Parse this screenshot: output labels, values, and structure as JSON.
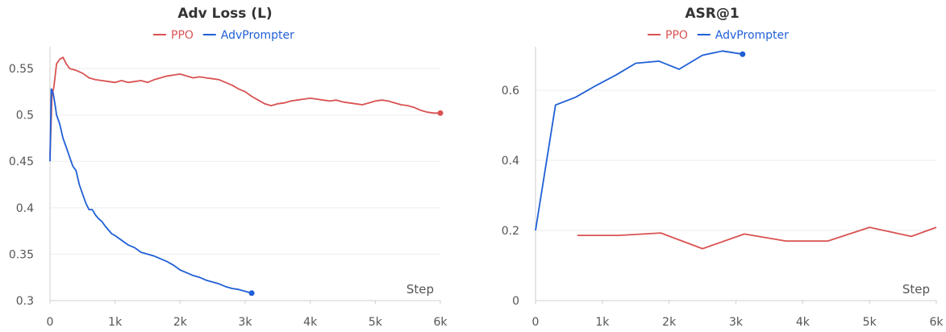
{
  "chart_data": [
    {
      "type": "line",
      "title": "Adv Loss (L)",
      "xlabel": "Step",
      "ylabel": "",
      "xlim": [
        0,
        6000
      ],
      "ylim": [
        0.3,
        0.57
      ],
      "xticks": [
        0,
        1000,
        2000,
        3000,
        4000,
        5000,
        6000
      ],
      "xtick_labels": [
        "0",
        "1k",
        "2k",
        "3k",
        "4k",
        "5k",
        "6k"
      ],
      "yticks": [
        0.3,
        0.35,
        0.4,
        0.45,
        0.5,
        0.55
      ],
      "ytick_labels": [
        "0.3",
        "0.35",
        "0.4",
        "0.45",
        "0.5",
        "0.55"
      ],
      "grid": true,
      "legend_position": "top-center",
      "series": [
        {
          "name": "PPO",
          "color": "#d95252",
          "x": [
            0,
            30,
            60,
            100,
            150,
            200,
            250,
            300,
            400,
            500,
            600,
            700,
            800,
            900,
            1000,
            1100,
            1200,
            1300,
            1400,
            1500,
            1600,
            1700,
            1800,
            1900,
            2000,
            2100,
            2200,
            2300,
            2400,
            2500,
            2600,
            2700,
            2800,
            2900,
            3000,
            3100,
            3200,
            3300,
            3400,
            3500,
            3600,
            3700,
            3800,
            3900,
            4000,
            4100,
            4200,
            4300,
            4400,
            4500,
            4600,
            4700,
            4800,
            4900,
            5000,
            5100,
            5200,
            5300,
            5400,
            5500,
            5600,
            5700,
            5800,
            5900,
            6000
          ],
          "values": [
            0.455,
            0.52,
            0.53,
            0.555,
            0.56,
            0.562,
            0.555,
            0.55,
            0.548,
            0.545,
            0.54,
            0.538,
            0.537,
            0.536,
            0.535,
            0.537,
            0.535,
            0.536,
            0.537,
            0.535,
            0.538,
            0.54,
            0.542,
            0.543,
            0.544,
            0.542,
            0.54,
            0.541,
            0.54,
            0.539,
            0.538,
            0.535,
            0.532,
            0.528,
            0.525,
            0.52,
            0.516,
            0.512,
            0.51,
            0.512,
            0.513,
            0.515,
            0.516,
            0.517,
            0.518,
            0.517,
            0.516,
            0.515,
            0.516,
            0.514,
            0.513,
            0.512,
            0.511,
            0.513,
            0.515,
            0.516,
            0.515,
            0.513,
            0.511,
            0.51,
            0.508,
            0.505,
            0.503,
            0.502,
            0.502
          ]
        },
        {
          "name": "AdvPrompter",
          "color": "#1f5fd6",
          "x": [
            0,
            20,
            50,
            80,
            100,
            150,
            200,
            250,
            300,
            350,
            400,
            450,
            500,
            550,
            600,
            650,
            700,
            750,
            800,
            850,
            900,
            950,
            1000,
            1100,
            1200,
            1300,
            1400,
            1500,
            1600,
            1700,
            1800,
            1900,
            2000,
            2100,
            2200,
            2300,
            2400,
            2500,
            2600,
            2700,
            2800,
            2900,
            3000,
            3100
          ],
          "values": [
            0.45,
            0.528,
            0.523,
            0.51,
            0.5,
            0.49,
            0.475,
            0.465,
            0.455,
            0.445,
            0.44,
            0.425,
            0.415,
            0.405,
            0.398,
            0.398,
            0.392,
            0.388,
            0.385,
            0.38,
            0.376,
            0.372,
            0.37,
            0.365,
            0.36,
            0.357,
            0.352,
            0.35,
            0.348,
            0.345,
            0.342,
            0.338,
            0.333,
            0.33,
            0.327,
            0.325,
            0.322,
            0.32,
            0.318,
            0.315,
            0.313,
            0.312,
            0.31,
            0.308
          ]
        }
      ]
    },
    {
      "type": "line",
      "title": "ASR@1",
      "xlabel": "Step",
      "ylabel": "",
      "xlim": [
        0,
        6000
      ],
      "ylim": [
        0,
        0.715
      ],
      "xticks": [
        0,
        1000,
        2000,
        3000,
        4000,
        5000,
        6000
      ],
      "xtick_labels": [
        "0",
        "1k",
        "2k",
        "3k",
        "4k",
        "5k",
        "6k"
      ],
      "yticks": [
        0,
        0.2,
        0.4,
        0.6
      ],
      "ytick_labels": [
        "0",
        "0.2",
        "0.4",
        "0.6"
      ],
      "grid": true,
      "legend_position": "top-center",
      "series": [
        {
          "name": "PPO",
          "color": "#d95252",
          "x": [
            625,
            1250,
            1875,
            2500,
            3125,
            3750,
            4375,
            5000,
            5625,
            6000
          ],
          "values": [
            0.186,
            0.186,
            0.193,
            0.148,
            0.19,
            0.17,
            0.17,
            0.209,
            0.183,
            0.209
          ]
        },
        {
          "name": "AdvPrompter",
          "color": "#1f5fd6",
          "x": [
            0,
            300,
            600,
            900,
            1200,
            1500,
            1850,
            2150,
            2500,
            2800,
            3100
          ],
          "values": [
            0.2,
            0.558,
            0.58,
            0.613,
            0.643,
            0.677,
            0.683,
            0.66,
            0.7,
            0.712,
            0.703
          ]
        }
      ]
    }
  ]
}
